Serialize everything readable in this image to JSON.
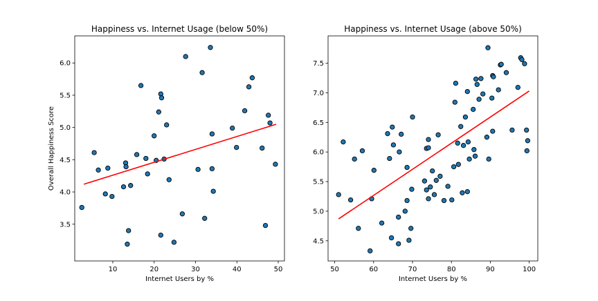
{
  "chart_data": [
    {
      "type": "scatter",
      "title": "Happiness vs. Internet Usage (below 50%)",
      "xlabel": "Internet Users by %",
      "ylabel": "Overall Happiness Score",
      "xlim": [
        0.8,
        51.5
      ],
      "ylim": [
        2.93,
        6.42
      ],
      "xticks": [
        10,
        20,
        30,
        40,
        50
      ],
      "xtick_labels": [
        "10",
        "20",
        "30",
        "40",
        "50"
      ],
      "yticks": [
        3.5,
        4.0,
        4.5,
        5.0,
        5.5,
        6.0
      ],
      "ytick_labels": [
        "3.5",
        "4.0",
        "4.5",
        "5.0",
        "5.5",
        "6.0"
      ],
      "grid": false,
      "point_color": "#1f77b4",
      "fit_color": "#ff0000",
      "fit_line": {
        "x": [
          3.0,
          49.5
        ],
        "y": [
          4.12,
          5.05
        ]
      },
      "points": [
        {
          "x": 2.5,
          "y": 3.76
        },
        {
          "x": 5.5,
          "y": 4.61
        },
        {
          "x": 6.5,
          "y": 4.34
        },
        {
          "x": 8.2,
          "y": 3.97
        },
        {
          "x": 8.8,
          "y": 4.37
        },
        {
          "x": 9.8,
          "y": 3.93
        },
        {
          "x": 12.6,
          "y": 4.08
        },
        {
          "x": 13.1,
          "y": 4.45
        },
        {
          "x": 13.2,
          "y": 4.39
        },
        {
          "x": 13.5,
          "y": 3.19
        },
        {
          "x": 13.8,
          "y": 3.4
        },
        {
          "x": 14.3,
          "y": 4.1
        },
        {
          "x": 15.8,
          "y": 4.58
        },
        {
          "x": 16.8,
          "y": 5.65
        },
        {
          "x": 18.0,
          "y": 4.52
        },
        {
          "x": 18.4,
          "y": 4.28
        },
        {
          "x": 20.0,
          "y": 4.87
        },
        {
          "x": 20.5,
          "y": 4.49
        },
        {
          "x": 21.1,
          "y": 5.24
        },
        {
          "x": 21.6,
          "y": 5.52
        },
        {
          "x": 21.8,
          "y": 5.46
        },
        {
          "x": 21.6,
          "y": 3.33
        },
        {
          "x": 22.4,
          "y": 4.51
        },
        {
          "x": 23.0,
          "y": 5.04
        },
        {
          "x": 23.6,
          "y": 4.19
        },
        {
          "x": 24.8,
          "y": 3.22
        },
        {
          "x": 26.8,
          "y": 3.66
        },
        {
          "x": 27.6,
          "y": 6.1
        },
        {
          "x": 30.6,
          "y": 4.35
        },
        {
          "x": 31.6,
          "y": 5.85
        },
        {
          "x": 32.2,
          "y": 3.59
        },
        {
          "x": 33.6,
          "y": 6.24
        },
        {
          "x": 34.0,
          "y": 4.9
        },
        {
          "x": 34.0,
          "y": 4.36
        },
        {
          "x": 34.3,
          "y": 4.01
        },
        {
          "x": 38.9,
          "y": 4.99
        },
        {
          "x": 39.9,
          "y": 4.69
        },
        {
          "x": 41.9,
          "y": 5.26
        },
        {
          "x": 42.9,
          "y": 5.63
        },
        {
          "x": 43.7,
          "y": 5.77
        },
        {
          "x": 46.1,
          "y": 4.68
        },
        {
          "x": 46.9,
          "y": 3.48
        },
        {
          "x": 47.6,
          "y": 5.19
        },
        {
          "x": 48.0,
          "y": 5.07
        },
        {
          "x": 49.3,
          "y": 4.43
        }
      ]
    },
    {
      "type": "scatter",
      "title": "Happiness vs. Internet Usage (above 50%)",
      "xlabel": "Internet Users by %",
      "ylabel": "",
      "xlim": [
        48.3,
        102.2
      ],
      "ylim": [
        4.16,
        7.96
      ],
      "xticks": [
        50,
        60,
        70,
        80,
        90,
        100
      ],
      "xtick_labels": [
        "50",
        "60",
        "70",
        "80",
        "90",
        "100"
      ],
      "yticks": [
        4.5,
        5.0,
        5.5,
        6.0,
        6.5,
        7.0,
        7.5
      ],
      "ytick_labels": [
        "4.5",
        "5.0",
        "5.5",
        "6.0",
        "6.5",
        "7.0",
        "7.5"
      ],
      "grid": false,
      "point_color": "#1f77b4",
      "fit_color": "#ff0000",
      "fit_line": {
        "x": [
          51.0,
          100.0
        ],
        "y": [
          4.87,
          7.03
        ]
      },
      "points": [
        {
          "x": 51.0,
          "y": 5.28
        },
        {
          "x": 52.2,
          "y": 6.17
        },
        {
          "x": 54.1,
          "y": 5.19
        },
        {
          "x": 55.1,
          "y": 5.88
        },
        {
          "x": 56.1,
          "y": 4.71
        },
        {
          "x": 57.1,
          "y": 6.02
        },
        {
          "x": 59.1,
          "y": 4.33
        },
        {
          "x": 59.5,
          "y": 5.21
        },
        {
          "x": 60.1,
          "y": 5.69
        },
        {
          "x": 62.1,
          "y": 4.8
        },
        {
          "x": 63.6,
          "y": 6.31
        },
        {
          "x": 64.1,
          "y": 5.89
        },
        {
          "x": 64.6,
          "y": 4.55
        },
        {
          "x": 65.1,
          "y": 6.12
        },
        {
          "x": 64.8,
          "y": 6.42
        },
        {
          "x": 66.4,
          "y": 4.45
        },
        {
          "x": 66.4,
          "y": 4.9
        },
        {
          "x": 67.1,
          "y": 6.3
        },
        {
          "x": 66.6,
          "y": 6.0
        },
        {
          "x": 68.1,
          "y": 5.0
        },
        {
          "x": 68.6,
          "y": 5.18
        },
        {
          "x": 68.6,
          "y": 5.74
        },
        {
          "x": 69.1,
          "y": 4.51
        },
        {
          "x": 69.6,
          "y": 4.71
        },
        {
          "x": 70.0,
          "y": 6.59
        },
        {
          "x": 69.8,
          "y": 5.37
        },
        {
          "x": 73.1,
          "y": 5.51
        },
        {
          "x": 73.6,
          "y": 5.36
        },
        {
          "x": 73.6,
          "y": 6.06
        },
        {
          "x": 74.1,
          "y": 6.07
        },
        {
          "x": 74.1,
          "y": 6.21
        },
        {
          "x": 74.1,
          "y": 5.21
        },
        {
          "x": 74.6,
          "y": 5.41
        },
        {
          "x": 75.1,
          "y": 5.68
        },
        {
          "x": 75.6,
          "y": 5.28
        },
        {
          "x": 76.1,
          "y": 5.52
        },
        {
          "x": 76.6,
          "y": 6.29
        },
        {
          "x": 77.1,
          "y": 5.59
        },
        {
          "x": 78.1,
          "y": 5.18
        },
        {
          "x": 79.1,
          "y": 5.42
        },
        {
          "x": 80.1,
          "y": 5.19
        },
        {
          "x": 80.6,
          "y": 5.75
        },
        {
          "x": 81.1,
          "y": 7.16
        },
        {
          "x": 80.9,
          "y": 6.84
        },
        {
          "x": 81.6,
          "y": 6.15
        },
        {
          "x": 81.8,
          "y": 5.79
        },
        {
          "x": 82.4,
          "y": 6.43
        },
        {
          "x": 83.1,
          "y": 6.11
        },
        {
          "x": 82.8,
          "y": 5.31
        },
        {
          "x": 83.6,
          "y": 6.59
        },
        {
          "x": 84.3,
          "y": 6.17
        },
        {
          "x": 84.1,
          "y": 5.33
        },
        {
          "x": 84.1,
          "y": 7.02
        },
        {
          "x": 84.6,
          "y": 5.88
        },
        {
          "x": 85.6,
          "y": 6.72
        },
        {
          "x": 85.8,
          "y": 6.04
        },
        {
          "x": 86.1,
          "y": 5.93
        },
        {
          "x": 86.3,
          "y": 7.23
        },
        {
          "x": 86.6,
          "y": 7.14
        },
        {
          "x": 87.1,
          "y": 6.89
        },
        {
          "x": 87.6,
          "y": 7.24
        },
        {
          "x": 88.1,
          "y": 6.98
        },
        {
          "x": 89.1,
          "y": 6.25
        },
        {
          "x": 89.6,
          "y": 5.88
        },
        {
          "x": 89.4,
          "y": 7.76
        },
        {
          "x": 90.6,
          "y": 6.35
        },
        {
          "x": 90.4,
          "y": 6.91
        },
        {
          "x": 90.6,
          "y": 7.29
        },
        {
          "x": 90.8,
          "y": 7.27
        },
        {
          "x": 92.1,
          "y": 7.05
        },
        {
          "x": 92.6,
          "y": 7.47
        },
        {
          "x": 92.8,
          "y": 7.48
        },
        {
          "x": 94.1,
          "y": 7.34
        },
        {
          "x": 95.6,
          "y": 6.37
        },
        {
          "x": 97.1,
          "y": 7.09
        },
        {
          "x": 97.8,
          "y": 7.59
        },
        {
          "x": 98.1,
          "y": 7.56
        },
        {
          "x": 98.8,
          "y": 7.49
        },
        {
          "x": 99.3,
          "y": 6.37
        },
        {
          "x": 99.6,
          "y": 6.19
        },
        {
          "x": 99.4,
          "y": 6.02
        }
      ]
    }
  ]
}
